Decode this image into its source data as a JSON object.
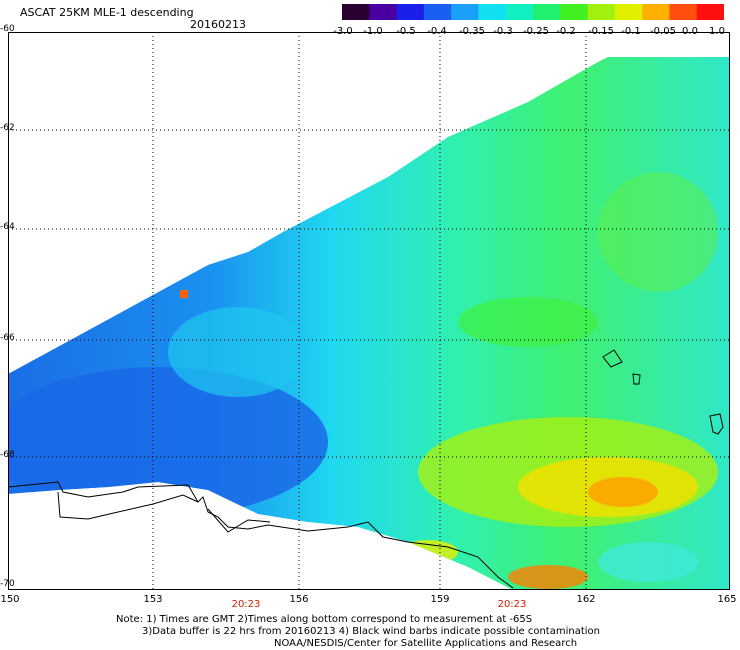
{
  "header": {
    "title": "ASCAT 25KM MLE-1 descending",
    "date": "20160213"
  },
  "legend": {
    "ticks": [
      "-3.0",
      "-1.0",
      "-0.5",
      "-0.4",
      "-0.35",
      "-0.3",
      "-0.25",
      "-0.2",
      "-0.15",
      "-0.1",
      "-0.05",
      "0.0",
      "1.0"
    ],
    "colors": [
      "#2a0030",
      "#4a00a0",
      "#1a20e8",
      "#1a60f0",
      "#1aa0f8",
      "#10e0f0",
      "#10f0c0",
      "#20f070",
      "#40f020",
      "#a0f010",
      "#e0f000",
      "#ffb000",
      "#ff5010",
      "#ff1010"
    ]
  },
  "map": {
    "lat_labels": [
      "-60",
      "-62",
      "-64",
      "-66",
      "-68",
      "-70"
    ],
    "lon_labels": [
      "150",
      "153",
      "156",
      "159",
      "162",
      "165"
    ],
    "time_labels": [
      "20:23",
      "20:23"
    ]
  },
  "notes": {
    "line1": "Note: 1) Times are GMT 2)Times along bottom correspond to measurement at -65S",
    "line2": "3)Data buffer is 22 hrs from 20160213 4) Black wind barbs indicate possible contamination",
    "line3": "NOAA/NESDIS/Center for Satellite Applications and Research"
  }
}
